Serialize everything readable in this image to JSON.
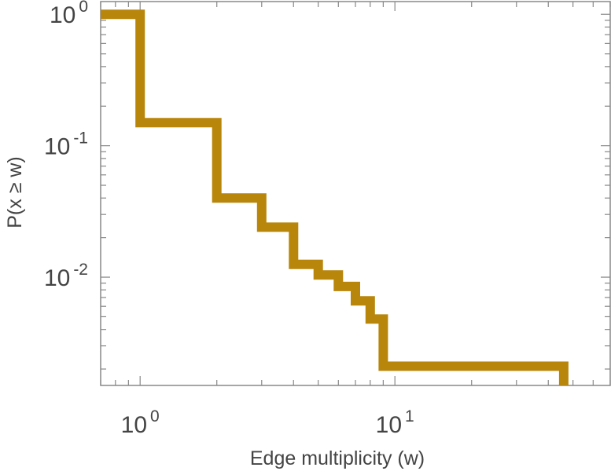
{
  "chart_data": {
    "type": "line",
    "step": true,
    "scale": {
      "x": "log",
      "y": "log"
    },
    "xlabel": "Edge multiplicity (w)",
    "ylabel": "P(x ≥ w)",
    "xlim": [
      0.7,
      70
    ],
    "ylim": [
      0.0015,
      1.25
    ],
    "xticks": [
      {
        "value": 1,
        "base": "10",
        "exp": "0"
      },
      {
        "value": 10,
        "base": "10",
        "exp": "1"
      }
    ],
    "yticks": [
      {
        "value": 1,
        "base": "10",
        "exp": "0"
      },
      {
        "value": 0.1,
        "base": "10",
        "exp": "-1"
      },
      {
        "value": 0.01,
        "base": "10",
        "exp": "-2"
      }
    ],
    "grid": false,
    "series": [
      {
        "color": "#b8860b",
        "x": [
          0.7,
          1,
          2,
          3,
          4,
          5,
          6,
          7,
          8,
          9,
          46
        ],
        "y": [
          1.0,
          0.15,
          0.04,
          0.024,
          0.0125,
          0.0104,
          0.0085,
          0.0066,
          0.0048,
          0.0021,
          0.0021
        ]
      }
    ]
  }
}
